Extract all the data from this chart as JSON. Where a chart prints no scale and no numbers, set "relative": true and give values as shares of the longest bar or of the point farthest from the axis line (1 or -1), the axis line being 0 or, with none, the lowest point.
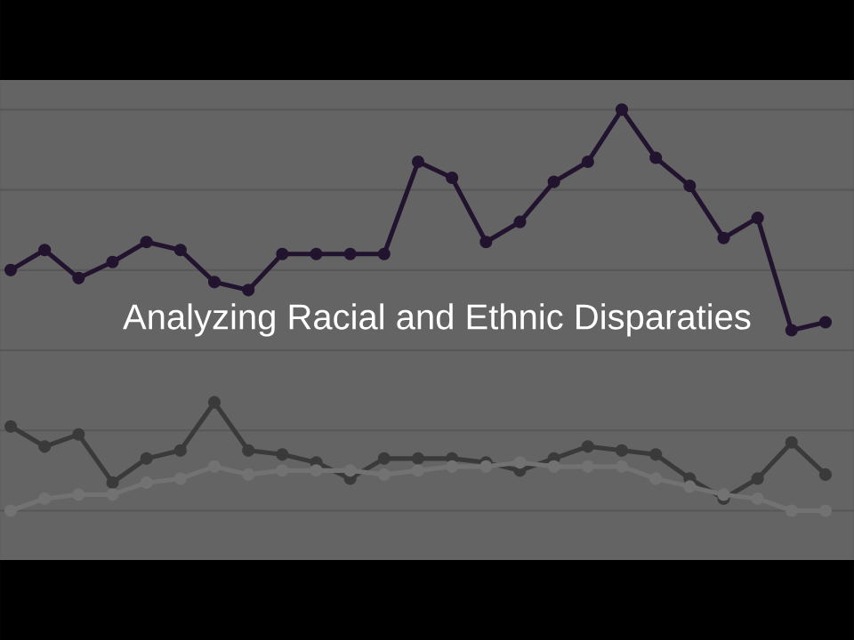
{
  "chart_data": {
    "type": "line",
    "title": "Analyzing Racial and Ethnic Disparaties",
    "relative": true,
    "grid": "y",
    "marker": "circle",
    "categories": [
      null,
      null,
      null,
      null,
      null,
      null,
      null,
      null,
      null,
      null,
      null,
      null,
      null,
      null,
      null,
      null,
      null,
      null,
      null,
      null,
      null,
      null,
      null,
      null,
      null
    ],
    "series": [
      {
        "color": "#22132f",
        "values": [
          0.6,
          0.65,
          0.58,
          0.62,
          0.67,
          0.65,
          0.57,
          0.55,
          0.64,
          0.64,
          0.64,
          0.64,
          0.87,
          0.83,
          0.67,
          0.72,
          0.82,
          0.87,
          1.0,
          0.88,
          0.81,
          0.68,
          0.73,
          0.45,
          0.47
        ]
      },
      {
        "color": "#3a3a3a",
        "values": [
          0.21,
          0.16,
          0.19,
          0.07,
          0.13,
          0.15,
          0.27,
          0.15,
          0.14,
          0.12,
          0.08,
          0.13,
          0.13,
          0.13,
          0.12,
          0.1,
          0.13,
          0.16,
          0.15,
          0.14,
          0.08,
          0.03,
          0.08,
          0.17,
          0.09
        ]
      },
      {
        "color": "#727272",
        "values": [
          0.0,
          0.03,
          0.04,
          0.04,
          0.07,
          0.08,
          0.11,
          0.09,
          0.1,
          0.1,
          0.1,
          0.09,
          0.1,
          0.11,
          0.11,
          0.12,
          0.11,
          0.11,
          0.11,
          0.08,
          0.06,
          0.04,
          0.03,
          0.0,
          0.0
        ]
      }
    ]
  }
}
